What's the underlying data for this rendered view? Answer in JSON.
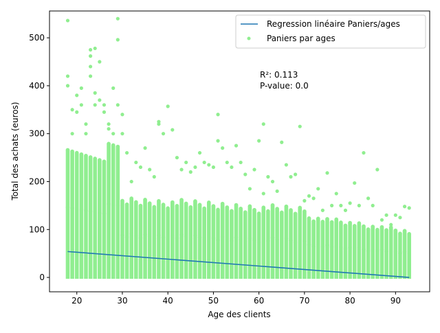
{
  "chart_data": {
    "type": "scatter",
    "xlabel": "Age des clients",
    "ylabel": "Total des achats (euros)",
    "xlim": [
      14,
      97.5
    ],
    "ylim": [
      -30,
      556
    ],
    "xticks": [
      20,
      30,
      40,
      50,
      60,
      70,
      80,
      90
    ],
    "yticks": [
      0,
      100,
      200,
      300,
      400,
      500
    ],
    "legend_position": "top-right",
    "annotation": {
      "lines": [
        "R²: 0.113",
        "P-value: 0.0"
      ],
      "x": 60,
      "y": 400
    },
    "series": [
      {
        "name": "Regression linéaire Paniers/ages",
        "kind": "line",
        "color": "#1f77b4",
        "x": [
          18,
          93
        ],
        "y": [
          54,
          0
        ]
      },
      {
        "name": "Paniers par ages",
        "kind": "scatter",
        "color": "#90ee90",
        "x": [
          18,
          18,
          18,
          19,
          19,
          20,
          20,
          21,
          21,
          22,
          22,
          23,
          23,
          23,
          23,
          24,
          24,
          24,
          25,
          25,
          26,
          26,
          27,
          27,
          28,
          28,
          29,
          29,
          29,
          30,
          30,
          31,
          32,
          33,
          34,
          35,
          36,
          37,
          38,
          38,
          39,
          40,
          41,
          42,
          43,
          44,
          45,
          46,
          47,
          48,
          49,
          50,
          51,
          51,
          52,
          53,
          54,
          55,
          56,
          57,
          58,
          59,
          60,
          61,
          61,
          62,
          63,
          64,
          65,
          66,
          67,
          68,
          69,
          70,
          71,
          72,
          73,
          74,
          75,
          76,
          77,
          78,
          79,
          80,
          81,
          82,
          83,
          84,
          85,
          86,
          87,
          88,
          89,
          90,
          91,
          92,
          93
        ],
        "y": [
          536,
          420,
          400,
          350,
          300,
          380,
          345,
          395,
          360,
          320,
          300,
          475,
          462,
          440,
          420,
          478,
          385,
          360,
          450,
          370,
          360,
          345,
          320,
          310,
          395,
          300,
          540,
          496,
          360,
          340,
          300,
          260,
          200,
          240,
          230,
          270,
          225,
          210,
          325,
          320,
          300,
          357,
          308,
          250,
          225,
          240,
          220,
          230,
          260,
          240,
          235,
          230,
          340,
          285,
          270,
          240,
          230,
          275,
          240,
          215,
          185,
          225,
          285,
          320,
          175,
          210,
          200,
          180,
          282,
          235,
          210,
          215,
          315,
          160,
          170,
          165,
          185,
          140,
          218,
          150,
          175,
          150,
          140,
          155,
          197,
          150,
          260,
          165,
          150,
          225,
          120,
          130,
          110,
          130,
          125,
          148,
          145
        ]
      }
    ]
  }
}
